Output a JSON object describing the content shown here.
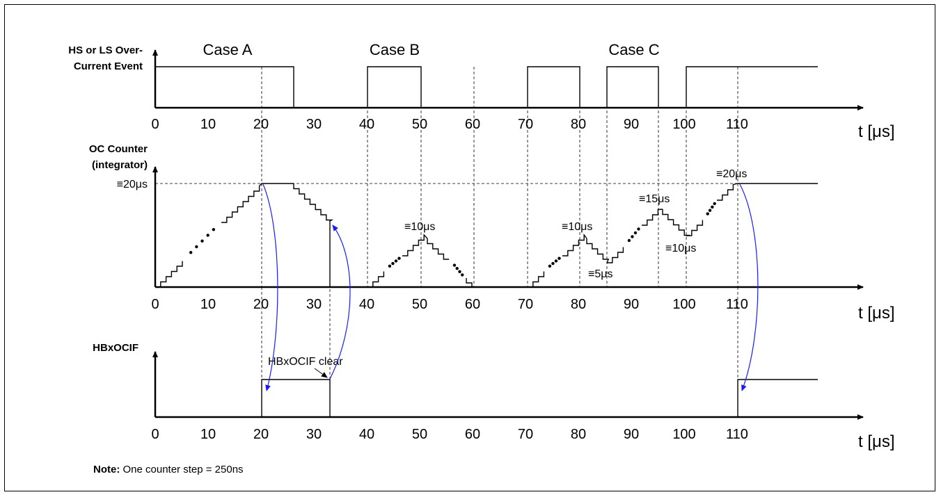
{
  "panels": {
    "top": {
      "ylabel_line1": "HS or LS Over-",
      "ylabel_line2": "Current Event"
    },
    "middle": {
      "ylabel_line1": "OC Counter",
      "ylabel_line2": "(integrator)",
      "ymax_label": "≡20μs"
    },
    "bottom": {
      "ylabel": "HBxOCIF"
    }
  },
  "cases": [
    "Case A",
    "Case B",
    "Case C"
  ],
  "x_ticks": [
    "0",
    "10",
    "20",
    "30",
    "40",
    "50",
    "60",
    "70",
    "80",
    "90",
    "100",
    "110"
  ],
  "x_unit": "t [μs]",
  "annotations": {
    "b_peak": "≡10μs",
    "c_peak1": "≡10μs",
    "c_valley1": "≡5μs",
    "c_peak2": "≡15μs",
    "c_valley2": "≡10μs",
    "c_peak3": "≡20μs",
    "flag_clear": "HBxOCIF clear"
  },
  "note": {
    "bold": "Note:",
    "text": " One counter step = 250ns"
  }
}
